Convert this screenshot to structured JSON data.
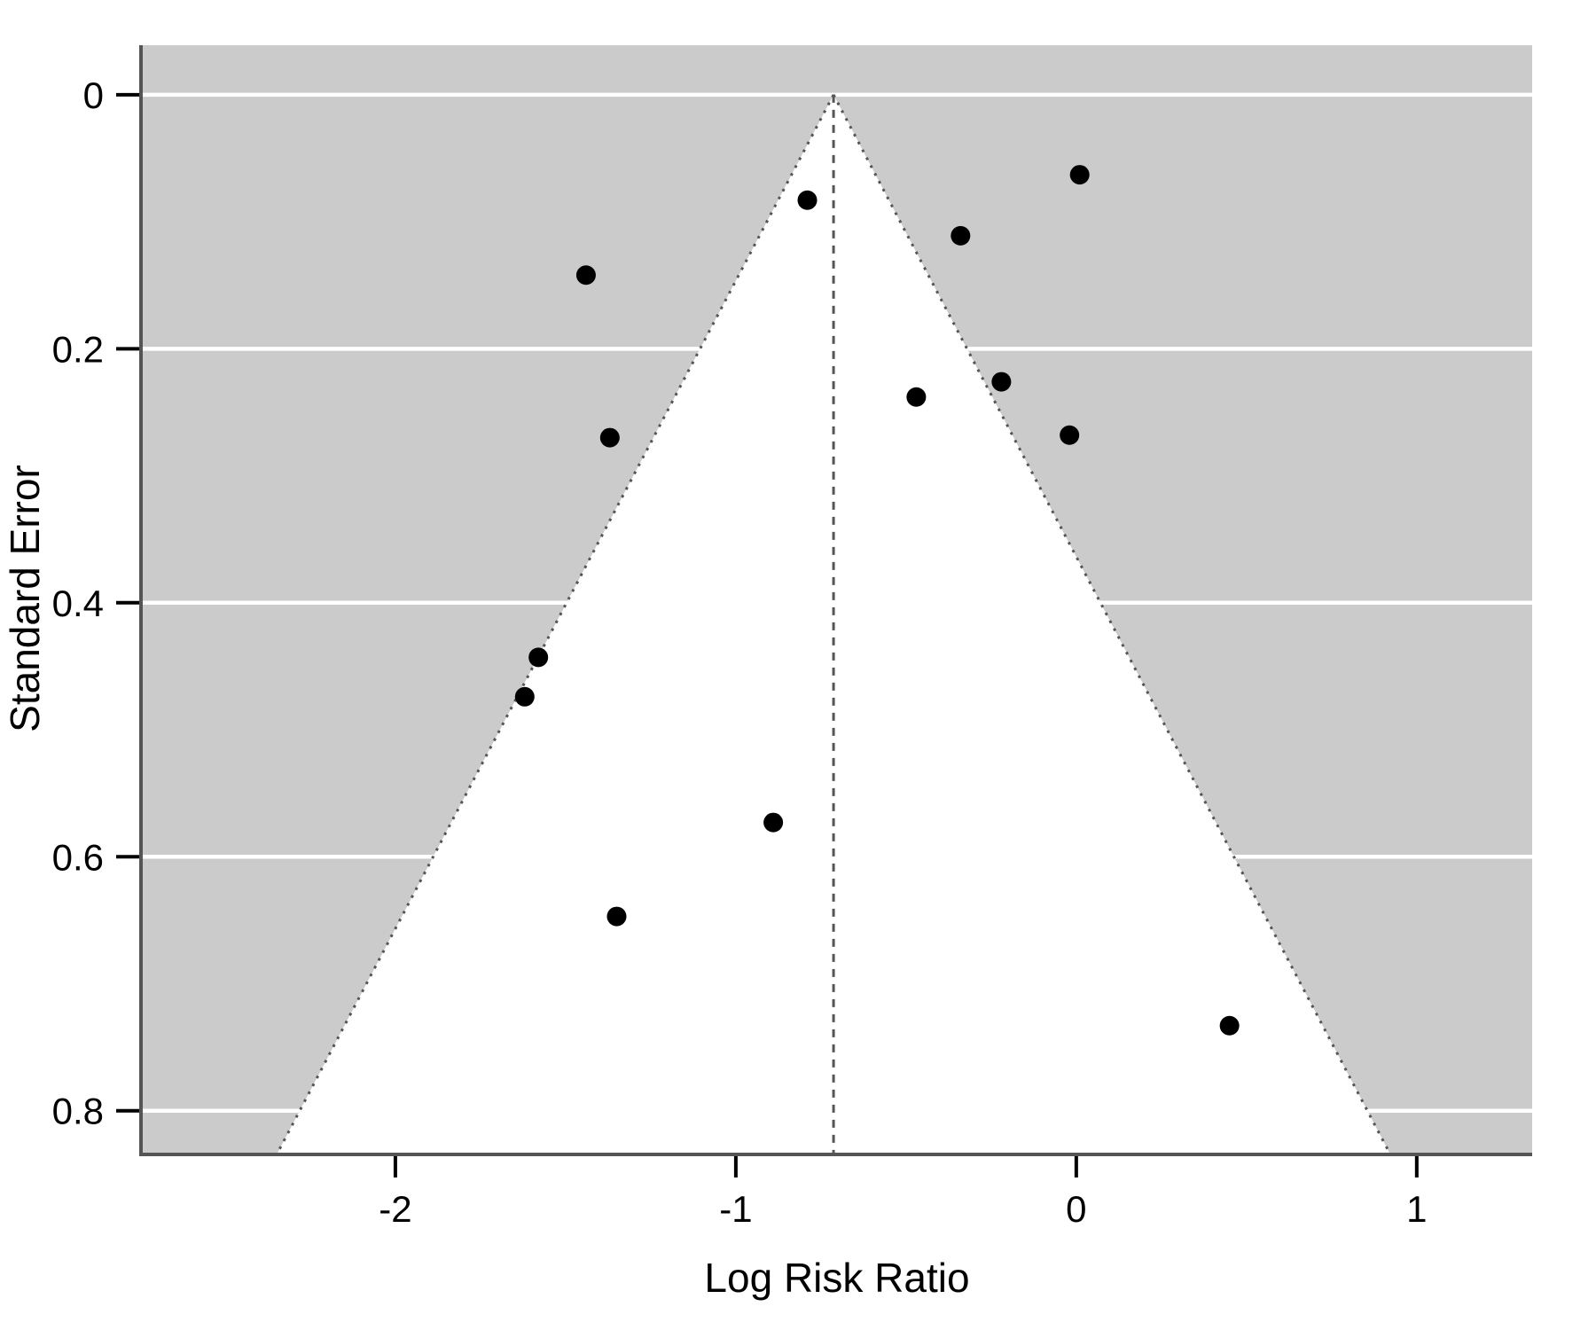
{
  "chart_data": {
    "type": "scatter",
    "subtype": "funnel-plot",
    "title": "",
    "xlabel": "Log Risk Ratio",
    "ylabel": "Standard Error",
    "x_ticks": [
      -2,
      -1,
      0,
      1
    ],
    "y_ticks": [
      0,
      0.2,
      0.4,
      0.6,
      0.8
    ],
    "xlim": [
      -2.742,
      1.339
    ],
    "ylim": [
      -0.039,
      0.833
    ],
    "y_axis_inverted": true,
    "grid": true,
    "legend": "none",
    "funnel": {
      "center": -0.713,
      "z_multiplier": 1.96,
      "center_line_style": "dashed",
      "edge_line_style": "dotted"
    },
    "points": [
      {
        "x": -0.79,
        "se": 0.083
      },
      {
        "x": 0.01,
        "se": 0.063
      },
      {
        "x": -0.34,
        "se": 0.111
      },
      {
        "x": -1.44,
        "se": 0.142
      },
      {
        "x": -0.22,
        "se": 0.226
      },
      {
        "x": -0.47,
        "se": 0.238
      },
      {
        "x": -0.02,
        "se": 0.268
      },
      {
        "x": -1.37,
        "se": 0.27
      },
      {
        "x": -1.58,
        "se": 0.443
      },
      {
        "x": -1.62,
        "se": 0.474
      },
      {
        "x": -0.89,
        "se": 0.573
      },
      {
        "x": -1.35,
        "se": 0.647
      },
      {
        "x": 0.45,
        "se": 0.733
      }
    ],
    "colors": {
      "panel_background": "#cbcbcb",
      "funnel_fill": "#ffffff",
      "gridline": "#ffffff",
      "funnel_lines": "#555555",
      "axis_line": "#555555",
      "tick_mark": "#000000",
      "point_fill": "#000000",
      "page_background": "#ffffff",
      "text": "#000000"
    }
  }
}
